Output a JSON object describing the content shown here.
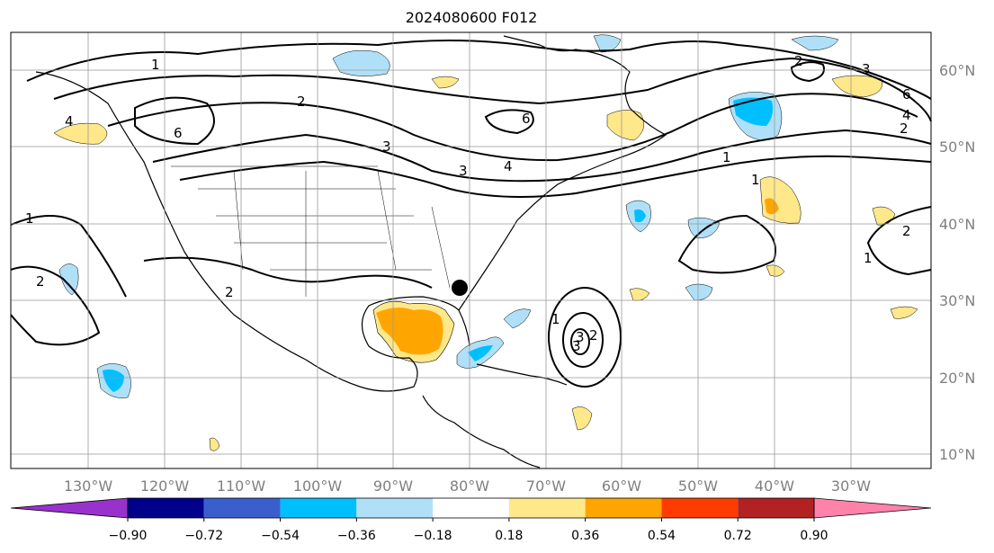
{
  "title": "2024080600 F012",
  "lon_labels": [
    "130°W",
    "120°W",
    "110°W",
    "100°W",
    "90°W",
    "80°W",
    "70°W",
    "60°W",
    "50°W",
    "40°W",
    "30°W"
  ],
  "lat_labels": [
    "60°N",
    "50°N",
    "40°N",
    "30°N",
    "20°N",
    "10°N"
  ],
  "contour_labels": [
    "1",
    "4",
    "6",
    "2",
    "3",
    "3",
    "4",
    "6",
    "3",
    "2",
    "1",
    "1",
    "2",
    "6",
    "4",
    "2",
    "1",
    "2",
    "1",
    "2",
    "3",
    "1",
    "2",
    "3"
  ],
  "colorbar": {
    "ticks": [
      "−0.90",
      "−0.72",
      "−0.54",
      "−0.36",
      "−0.18",
      "0.18",
      "0.36",
      "0.54",
      "0.72",
      "0.90"
    ],
    "colors": [
      "#9932cc",
      "#00008b",
      "#3a5fcd",
      "#00bfff",
      "#b0e0f8",
      "#ffffff",
      "#ffe88a",
      "#ffa500",
      "#ff3c00",
      "#b22222",
      "#ff82ab"
    ]
  }
}
